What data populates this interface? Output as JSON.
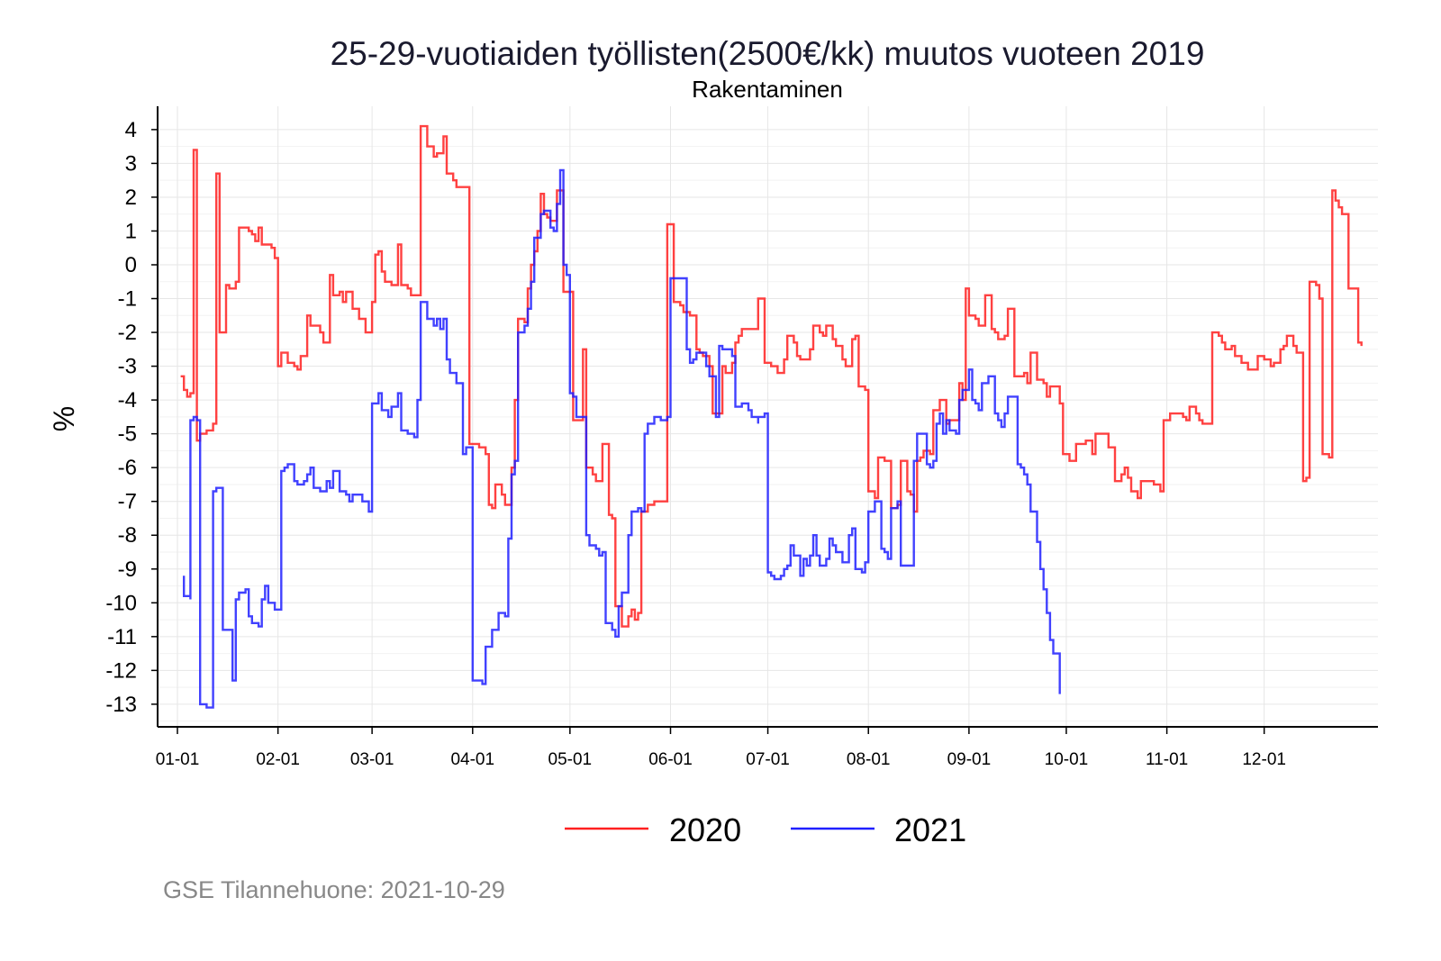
{
  "chart_data": {
    "type": "line",
    "title": "25-29-vuotiaiden työllisten(2500€/kk) muutos vuoteen 2019",
    "subtitle": "Rakentaminen",
    "xlabel": "",
    "ylabel": "%",
    "x_unit": "day of year (0 = 01-01)",
    "xlim": [
      0,
      365
    ],
    "ylim": [
      -13,
      4
    ],
    "x_ticks": [
      {
        "day": 0,
        "label": "01-01"
      },
      {
        "day": 31,
        "label": "02-01"
      },
      {
        "day": 60,
        "label": "03-01"
      },
      {
        "day": 91,
        "label": "04-01"
      },
      {
        "day": 121,
        "label": "05-01"
      },
      {
        "day": 152,
        "label": "06-01"
      },
      {
        "day": 182,
        "label": "07-01"
      },
      {
        "day": 213,
        "label": "08-01"
      },
      {
        "day": 244,
        "label": "09-01"
      },
      {
        "day": 274,
        "label": "10-01"
      },
      {
        "day": 305,
        "label": "11-01"
      },
      {
        "day": 335,
        "label": "12-01"
      }
    ],
    "y_ticks": [
      "4",
      "3",
      "2",
      "1",
      "0",
      "-1",
      "-2",
      "-3",
      "-4",
      "-5",
      "-6",
      "-7",
      "-8",
      "-9",
      "-10",
      "-11",
      "-12",
      "-13"
    ],
    "y_tick_values": [
      4,
      3,
      2,
      1,
      0,
      -1,
      -2,
      -3,
      -4,
      -5,
      -6,
      -7,
      -8,
      -9,
      -10,
      -11,
      -12,
      -13
    ],
    "grid": true,
    "legend_position": "bottom",
    "step": true,
    "series": [
      {
        "name": "2020",
        "color": "#ff2020",
        "x": [
          1,
          2,
          3,
          4,
          5,
          6,
          7,
          9,
          11,
          12,
          13,
          15,
          16,
          18,
          19,
          22,
          23,
          24,
          25,
          26,
          29,
          30,
          31,
          32,
          34,
          36,
          37,
          38,
          40,
          41,
          44,
          45,
          47,
          48,
          50,
          51,
          52,
          54,
          56,
          58,
          60,
          61,
          62,
          63,
          64,
          66,
          68,
          69,
          71,
          72,
          75,
          77,
          79,
          80,
          82,
          83,
          85,
          86,
          88,
          90,
          93,
          95,
          96,
          97,
          98,
          100,
          101,
          103,
          104,
          105,
          107,
          108,
          109,
          110,
          111,
          112,
          113,
          114,
          115,
          117,
          119,
          122,
          124,
          125,
          126,
          128,
          129,
          131,
          133,
          134,
          135,
          137,
          139,
          140,
          141,
          142,
          143,
          145,
          147,
          151,
          153,
          155,
          156,
          158,
          160,
          161,
          162,
          164,
          165,
          167,
          168,
          169,
          171,
          172,
          173,
          174,
          176,
          179,
          181,
          183,
          185,
          187,
          188,
          190,
          191,
          192,
          195,
          196,
          198,
          199,
          200,
          202,
          203,
          205,
          206,
          208,
          209,
          210,
          212,
          213,
          215,
          216,
          218,
          220,
          222,
          223,
          225,
          226,
          227,
          228,
          229,
          230,
          232,
          233,
          235,
          237,
          238,
          240,
          241,
          242,
          243,
          244,
          246,
          247,
          249,
          251,
          252,
          253,
          255,
          256,
          258,
          261,
          262,
          263,
          265,
          267,
          268,
          269,
          271,
          272,
          273,
          275,
          277,
          279,
          280,
          282,
          283,
          287,
          289,
          291,
          292,
          293,
          294,
          296,
          297,
          300,
          301,
          303,
          304,
          306,
          308,
          310,
          311,
          312,
          314,
          315,
          316,
          319,
          321,
          322,
          323,
          325,
          326,
          328,
          330,
          331,
          333,
          335,
          337,
          338,
          340,
          341,
          342,
          344,
          345,
          347,
          348,
          349,
          351,
          352,
          353,
          355,
          356,
          357,
          358,
          359,
          361,
          363,
          364,
          365
        ],
        "y": [
          -3.3,
          -3.7,
          -3.9,
          -3.8,
          3.4,
          -5.2,
          -5.0,
          -4.9,
          -4.7,
          2.7,
          -2.0,
          -0.6,
          -0.7,
          -0.5,
          1.1,
          1.0,
          0.9,
          0.7,
          1.1,
          0.6,
          0.5,
          0.2,
          -3.0,
          -2.6,
          -2.9,
          -3.0,
          -3.1,
          -2.7,
          -1.5,
          -1.8,
          -2.0,
          -2.3,
          -0.3,
          -0.9,
          -0.8,
          -1.1,
          -0.8,
          -1.3,
          -1.6,
          -2.0,
          -1.1,
          0.3,
          0.4,
          -0.2,
          -0.5,
          -0.6,
          0.6,
          -0.6,
          -0.7,
          -0.9,
          4.1,
          3.5,
          3.2,
          3.3,
          3.8,
          2.7,
          2.5,
          2.3,
          2.3,
          -5.3,
          -5.4,
          -5.6,
          -7.1,
          -7.2,
          -6.5,
          -6.8,
          -7.1,
          -6.0,
          -4.0,
          -1.6,
          -1.7,
          -0.7,
          0.0,
          0.4,
          1.0,
          2.1,
          1.5,
          1.4,
          1.3,
          2.2,
          -0.8,
          -4.6,
          -4.6,
          -2.5,
          -6.0,
          -6.2,
          -6.4,
          -5.3,
          -7.4,
          -7.5,
          -10.1,
          -10.7,
          -10.4,
          -10.2,
          -10.5,
          -10.3,
          -7.3,
          -7.1,
          -7.0,
          1.2,
          -1.1,
          -1.2,
          -1.4,
          -1.5,
          -2.5,
          -2.6,
          -2.7,
          -3.0,
          -4.4,
          -4.4,
          -3.0,
          -3.2,
          -2.9,
          -2.3,
          -2.1,
          -1.9,
          -1.9,
          -1.0,
          -2.9,
          -3.0,
          -3.2,
          -2.8,
          -2.1,
          -2.3,
          -2.7,
          -2.8,
          -2.5,
          -1.8,
          -2.0,
          -2.1,
          -1.8,
          -2.2,
          -2.4,
          -2.8,
          -3.0,
          -2.2,
          -2.1,
          -3.6,
          -3.7,
          -6.7,
          -6.9,
          -5.7,
          -5.8,
          -7.2,
          -7.1,
          -5.8,
          -6.7,
          -6.8,
          -7.3,
          -5.8,
          -5.7,
          -5.5,
          -5.6,
          -4.3,
          -4.0,
          -4.7,
          -4.6,
          -4.6,
          -3.5,
          -4.0,
          -0.7,
          -1.5,
          -1.6,
          -1.8,
          -0.9,
          -1.9,
          -2.0,
          -2.2,
          -2.1,
          -1.3,
          -3.3,
          -3.2,
          -3.5,
          -2.6,
          -3.4,
          -3.5,
          -3.9,
          -3.6,
          -3.6,
          -4.1,
          -5.6,
          -5.8,
          -5.3,
          -5.3,
          -5.2,
          -5.6,
          -5.0,
          -5.4,
          -6.4,
          -6.2,
          -6.0,
          -6.3,
          -6.7,
          -6.9,
          -6.4,
          -6.4,
          -6.5,
          -6.7,
          -4.6,
          -4.4,
          -4.4,
          -4.5,
          -4.6,
          -4.2,
          -4.4,
          -4.6,
          -4.7,
          -2.0,
          -2.1,
          -2.3,
          -2.5,
          -2.4,
          -2.7,
          -2.9,
          -3.1,
          -3.1,
          -2.7,
          -2.8,
          -3.0,
          -2.9,
          -2.5,
          -2.4,
          -2.1,
          -2.4,
          -2.6,
          -6.4,
          -6.3,
          -0.5,
          -0.6,
          -1.0,
          -5.6,
          -5.7,
          2.2,
          1.9,
          1.7,
          1.5,
          -0.7,
          -0.7,
          -2.3,
          -2.4
        ]
      },
      {
        "name": "2021",
        "color": "#2020ff",
        "x": [
          2,
          2,
          4,
          4,
          5,
          6,
          7,
          9,
          11,
          11,
          12,
          14,
          16,
          17,
          18,
          19,
          21,
          22,
          23,
          25,
          26,
          27,
          28,
          30,
          32,
          33,
          34,
          36,
          37,
          39,
          40,
          41,
          42,
          44,
          46,
          47,
          48,
          50,
          52,
          53,
          54,
          56,
          57,
          59,
          60,
          62,
          63,
          65,
          66,
          68,
          69,
          71,
          73,
          74,
          75,
          77,
          79,
          80,
          81,
          82,
          83,
          84,
          86,
          88,
          89,
          91,
          93,
          94,
          95,
          97,
          99,
          101,
          102,
          103,
          104,
          105,
          107,
          108,
          109,
          110,
          112,
          112,
          113,
          115,
          116,
          117,
          118,
          119,
          120,
          121,
          122,
          123,
          125,
          126,
          127,
          129,
          130,
          131,
          132,
          134,
          135,
          136,
          137,
          139,
          140,
          142,
          143,
          144,
          145,
          147,
          149,
          151,
          152,
          154,
          157,
          158,
          159,
          160,
          163,
          164,
          166,
          167,
          167,
          168,
          171,
          172,
          174,
          176,
          177,
          179,
          179,
          181,
          182,
          183,
          184,
          186,
          187,
          188,
          189,
          190,
          192,
          193,
          194,
          195,
          196,
          197,
          198,
          200,
          201,
          202,
          203,
          205,
          207,
          208,
          209,
          211,
          212,
          213,
          215,
          215,
          217,
          218,
          219,
          220,
          222,
          223,
          225,
          227,
          227,
          228,
          230,
          231,
          232,
          233,
          234,
          235,
          236,
          237,
          238,
          240,
          241,
          242,
          244,
          245,
          246,
          247,
          248,
          248,
          250,
          251,
          252,
          253,
          254,
          255,
          256,
          258,
          259,
          260,
          261,
          262,
          263,
          265,
          265,
          266,
          267,
          268,
          269,
          270,
          271,
          272
        ],
        "y": [
          -9.2,
          -9.8,
          -9.9,
          -4.6,
          -4.5,
          -4.6,
          -13.0,
          -13.1,
          -13.0,
          -6.7,
          -6.6,
          -10.8,
          -10.8,
          -12.3,
          -9.9,
          -9.7,
          -9.6,
          -10.4,
          -10.6,
          -10.7,
          -9.9,
          -9.5,
          -10.0,
          -10.2,
          -6.1,
          -6.0,
          -5.9,
          -6.4,
          -6.5,
          -6.4,
          -6.2,
          -6.0,
          -6.6,
          -6.7,
          -6.4,
          -6.6,
          -6.1,
          -6.7,
          -6.8,
          -7.0,
          -6.8,
          -6.8,
          -7.0,
          -7.3,
          -4.1,
          -3.8,
          -4.3,
          -4.5,
          -4.2,
          -3.8,
          -4.9,
          -5.0,
          -5.1,
          -4.0,
          -1.1,
          -1.6,
          -1.8,
          -1.6,
          -1.9,
          -1.6,
          -2.8,
          -3.2,
          -3.5,
          -5.6,
          -5.4,
          -12.3,
          -12.3,
          -12.4,
          -11.3,
          -10.8,
          -10.3,
          -10.4,
          -8.1,
          -6.2,
          -5.8,
          -2.0,
          -1.8,
          -1.3,
          -0.5,
          0.8,
          1.3,
          1.5,
          1.6,
          1.1,
          1.0,
          1.8,
          2.8,
          0.0,
          -0.3,
          -3.8,
          -3.9,
          -4.5,
          -4.5,
          -8.0,
          -8.3,
          -8.4,
          -8.6,
          -8.5,
          -10.6,
          -10.8,
          -11.0,
          -10.1,
          -9.7,
          -8.0,
          -7.3,
          -7.2,
          -7.3,
          -5.0,
          -4.7,
          -4.5,
          -4.6,
          -4.5,
          -0.4,
          -0.4,
          -2.5,
          -2.9,
          -2.8,
          -2.6,
          -3.0,
          -3.3,
          -4.5,
          -4.3,
          -2.4,
          -2.5,
          -2.7,
          -4.2,
          -4.1,
          -4.3,
          -4.5,
          -4.7,
          -4.5,
          -4.4,
          -9.1,
          -9.2,
          -9.3,
          -9.2,
          -9.0,
          -8.9,
          -8.3,
          -8.6,
          -9.2,
          -8.7,
          -8.9,
          -8.6,
          -8.0,
          -8.6,
          -8.9,
          -8.7,
          -8.1,
          -8.3,
          -8.5,
          -8.8,
          -8.0,
          -7.8,
          -9.0,
          -9.1,
          -8.8,
          -7.3,
          -7.1,
          -7.0,
          -8.4,
          -8.5,
          -8.7,
          -7.2,
          -7.0,
          -8.9,
          -8.9,
          -8.9,
          -5.8,
          -5.0,
          -5.0,
          -5.9,
          -6.0,
          -5.8,
          -4.7,
          -4.4,
          -5.0,
          -4.6,
          -4.9,
          -5.0,
          -4.0,
          -3.7,
          -3.1,
          -4.0,
          -4.1,
          -4.3,
          -3.7,
          -3.5,
          -3.3,
          -3.3,
          -4.4,
          -4.6,
          -4.8,
          -4.4,
          -3.9,
          -3.9,
          -5.9,
          -6.0,
          -6.2,
          -6.5,
          -7.3,
          -7.4,
          -8.2,
          -9.0,
          -9.6,
          -10.3,
          -11.1,
          -11.5,
          -11.5,
          -12.7
        ]
      }
    ],
    "legend": [
      {
        "label": "2020",
        "color": "#ff2020"
      },
      {
        "label": "2021",
        "color": "#2020ff"
      }
    ],
    "caption": "GSE Tilannehuone: 2021-10-29"
  }
}
